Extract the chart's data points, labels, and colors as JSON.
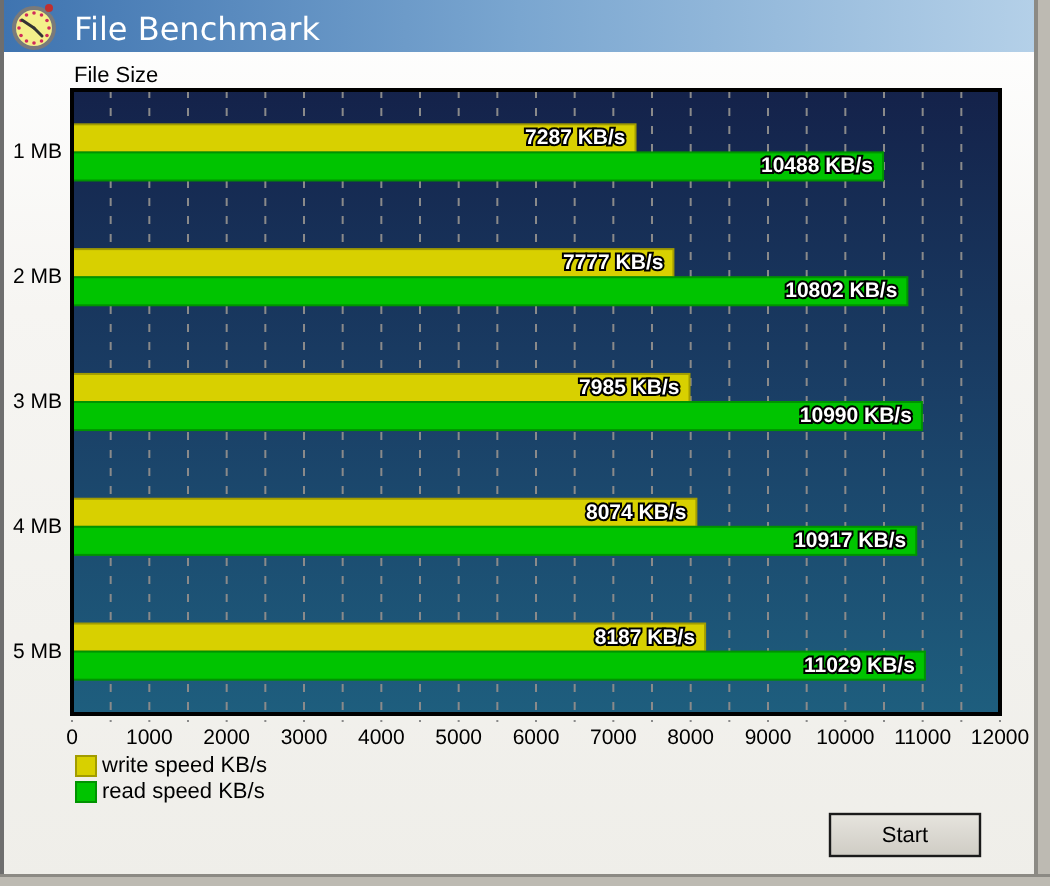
{
  "chart_data": {
    "type": "bar",
    "orientation": "horizontal",
    "title": "File Benchmark",
    "ylabel": "File Size",
    "categories": [
      "1 MB",
      "2 MB",
      "3 MB",
      "4 MB",
      "5 MB"
    ],
    "series": [
      {
        "name": "write speed KB/s",
        "color": "#d8d000",
        "values": [
          7287,
          7777,
          7985,
          8074,
          8187
        ],
        "value_labels": [
          "7287 KB/s",
          "7777 KB/s",
          "7985 KB/s",
          "8074 KB/s",
          "8187 KB/s"
        ]
      },
      {
        "name": "read speed KB/s",
        "color": "#00c400",
        "values": [
          10488,
          10802,
          10990,
          10917,
          11029
        ],
        "value_labels": [
          "10488 KB/s",
          "10802 KB/s",
          "10990 KB/s",
          "10917 KB/s",
          "11029 KB/s"
        ]
      }
    ],
    "xlim": [
      0,
      12000
    ],
    "xticks": [
      0,
      {
        "value": 500,
        "label": null
      },
      1000,
      {
        "value": 1500,
        "label": null
      },
      2000,
      {
        "value": 2500,
        "label": null
      },
      3000,
      {
        "value": 3500,
        "label": null
      },
      4000,
      {
        "value": 4500,
        "label": null
      },
      5000,
      {
        "value": 5500,
        "label": null
      },
      6000,
      {
        "value": 6500,
        "label": null
      },
      7000,
      {
        "value": 7500,
        "label": null
      },
      8000,
      {
        "value": 8500,
        "label": null
      },
      9000,
      {
        "value": 9500,
        "label": null
      },
      10000,
      {
        "value": 10500,
        "label": null
      },
      11000,
      {
        "value": 11500,
        "label": null
      },
      12000
    ],
    "grid": "x",
    "legend": "bottom left",
    "annotations": [
      "Start"
    ]
  }
}
